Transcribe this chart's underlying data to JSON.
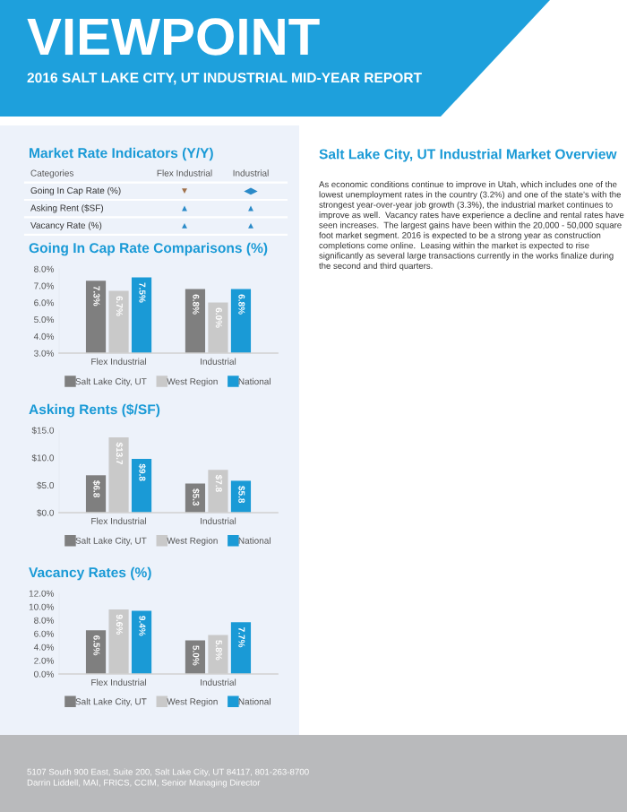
{
  "chart_data": [
    {
      "type": "other",
      "title": "VIEWPOINT",
      "subtitle": "2016 SALT LAKE CITY, UT INDUSTRIAL MID-YEAR REPORT"
    },
    {
      "type": "other",
      "title": "Market Rate Indicators (Y/Y)",
      "annotations": [
        "Categories",
        "Flex Industrial",
        "Industrial",
        "Going In Cap Rate (%)",
        "▼",
        "◀▶",
        "Asking Rent ($SF)",
        "▲",
        "▲",
        "Vacancy Rate (%)",
        "▲",
        "▲"
      ],
      "colors": [
        "#555555",
        "#555555",
        "#555555",
        "#333333",
        "#a0714a",
        "#2a8ac8",
        "#333333",
        "#2a8ac8",
        "#2a8ac8",
        "#333333",
        "#2a8ac8",
        "#2a8ac8"
      ]
    },
    {
      "type": "other",
      "title": "Salt Lake City, UT Industrial Market Overview",
      "annotations": [
        "As economic conditions continue to improve in Utah, which includes one of the lowest unemployment rates in the country (3.2%) and one of the state's with the strongest year-over-year job growth (3.3%), the industrial market continues to improve as well.  Vacancy rates have experience a decline and rental rates have seen increases.  The largest gains have been within the 20,000 - 50,000 square foot market segment. 2016 is expected to be a strong year as construction completions come online.  Leasing within the market is expected to rise significantly as several large transactions currently in the works finalize during the second and third quarters."
      ]
    },
    {
      "type": "bar",
      "title": "Going In Cap Rate Comparisons (%)",
      "categories": [
        "Flex Industrial",
        "Industrial"
      ],
      "legend": "bottom",
      "ylim": [
        3.0,
        8.0
      ],
      "yticks": [
        {
          "value": 3.0,
          "label": "3.0%"
        },
        {
          "value": 4.0,
          "label": "4.0%"
        },
        {
          "value": 5.0,
          "label": "5.0%"
        },
        {
          "value": 6.0,
          "label": "6.0%"
        },
        {
          "value": 7.0,
          "label": "7.0%"
        },
        {
          "value": 8.0,
          "label": "8.0%"
        }
      ],
      "series": [
        {
          "name": "Salt Lake City, UT",
          "color": "#7f7f7f",
          "values": [
            7.3,
            6.8
          ],
          "value_labels": [
            "7.3%",
            "6.8%"
          ]
        },
        {
          "name": "West Region",
          "color": "#c9c9c9",
          "values": [
            6.7,
            6.0
          ],
          "value_labels": [
            "6.7%",
            "6.0%"
          ]
        },
        {
          "name": "National",
          "color": "#1a9ad6",
          "values": [
            7.5,
            6.8
          ],
          "value_labels": [
            "7.5%",
            "6.8%"
          ]
        }
      ]
    },
    {
      "type": "bar",
      "title": "Asking Rents ($/SF)",
      "categories": [
        "Flex Industrial",
        "Industrial"
      ],
      "legend": "bottom",
      "ylim": [
        0.0,
        15.0
      ],
      "yticks": [
        {
          "value": 0,
          "label": "$0.0"
        },
        {
          "value": 5,
          "label": "$5.0"
        },
        {
          "value": 10,
          "label": "$10.0"
        },
        {
          "value": 15,
          "label": "$15.0"
        }
      ],
      "series": [
        {
          "name": "Salt Lake City, UT",
          "color": "#7f7f7f",
          "values": [
            6.8,
            5.3
          ],
          "value_labels": [
            "$6.8",
            "$5.3"
          ]
        },
        {
          "name": "West Region",
          "color": "#c9c9c9",
          "values": [
            13.7,
            7.8
          ],
          "value_labels": [
            "$13.7",
            "$7.8"
          ]
        },
        {
          "name": "National",
          "color": "#1a9ad6",
          "values": [
            9.8,
            5.8
          ],
          "value_labels": [
            "$9.8",
            "$5.8"
          ]
        }
      ]
    },
    {
      "type": "bar",
      "title": "Vacancy Rates (%)",
      "categories": [
        "Flex Industrial",
        "Industrial"
      ],
      "legend": "bottom",
      "ylim": [
        0.0,
        12.0
      ],
      "yticks": [
        {
          "value": 0,
          "label": "0.0%"
        },
        {
          "value": 2,
          "label": "2.0%"
        },
        {
          "value": 4,
          "label": "4.0%"
        },
        {
          "value": 6,
          "label": "6.0%"
        },
        {
          "value": 8,
          "label": "8.0%"
        },
        {
          "value": 10,
          "label": "10.0%"
        },
        {
          "value": 12,
          "label": "12.0%"
        }
      ],
      "series": [
        {
          "name": "Salt Lake City, UT",
          "color": "#7f7f7f",
          "values": [
            6.5,
            5.0
          ],
          "value_labels": [
            "6.5%",
            "5.0%"
          ]
        },
        {
          "name": "West Region",
          "color": "#c9c9c9",
          "values": [
            9.6,
            5.8
          ],
          "value_labels": [
            "9.6%",
            "5.8%"
          ]
        },
        {
          "name": "National",
          "color": "#1a9ad6",
          "values": [
            9.4,
            7.7
          ],
          "value_labels": [
            "9.4%",
            "7.7%"
          ]
        }
      ]
    },
    {
      "type": "other",
      "annotations": [
        "5107 South 900 East, Suite 200, Salt Lake City, UT 84117, 801-263-8700",
        "Darrin Liddell, MAI, FRICS, CCIM, Senior Managing Director"
      ]
    }
  ]
}
